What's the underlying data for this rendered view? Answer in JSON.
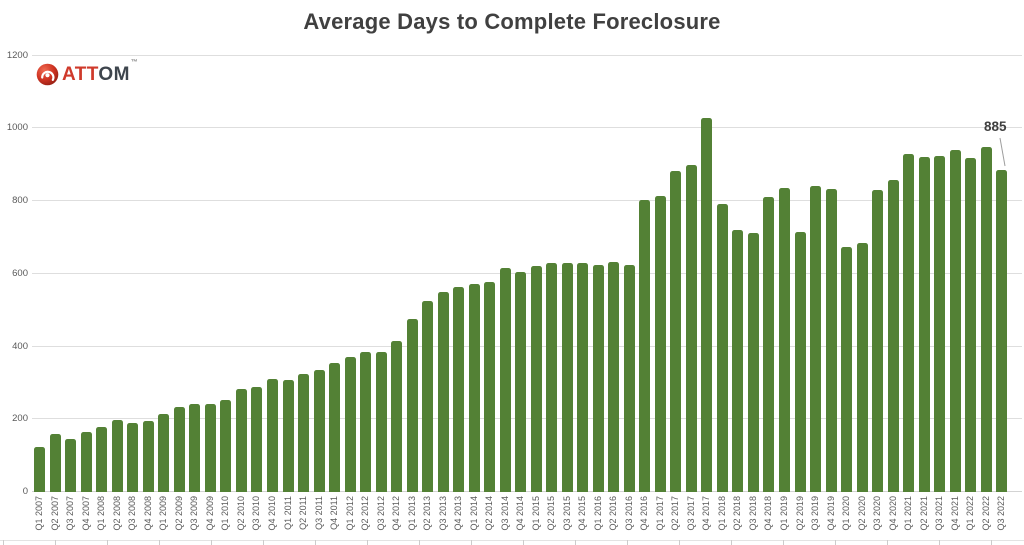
{
  "logo": {
    "text_red": "ATT",
    "text_dark": "OM",
    "trademark": "™",
    "icon_color": "#c6281c"
  },
  "chart_data": {
    "type": "bar",
    "title": "Average Days to Complete Foreclosure",
    "xlabel": "",
    "ylabel": "",
    "ylim": [
      0,
      1200
    ],
    "yticks": [
      0,
      200,
      400,
      600,
      800,
      1000,
      1200
    ],
    "grid": "horizontal",
    "legend": "none",
    "bar_color": "#538135",
    "axis_text_color": "#595959",
    "title_color": "#404040",
    "categories": [
      "Q1 2007",
      "Q2 2007",
      "Q3 2007",
      "Q4 2007",
      "Q1 2008",
      "Q2 2008",
      "Q3 2008",
      "Q4 2008",
      "Q1 2009",
      "Q2 2009",
      "Q3 2009",
      "Q4 2009",
      "Q1 2010",
      "Q2 2010",
      "Q3 2010",
      "Q4 2010",
      "Q1 2011",
      "Q2 2011",
      "Q3 2011",
      "Q4 2011",
      "Q1 2012",
      "Q2 2012",
      "Q3 2012",
      "Q4 2012",
      "Q1 2013",
      "Q2 2013",
      "Q3 2013",
      "Q4 2013",
      "Q1 2014",
      "Q2 2014",
      "Q3 2014",
      "Q4 2014",
      "Q1 2015",
      "Q2 2015",
      "Q3 2015",
      "Q4 2015",
      "Q1 2016",
      "Q2 2016",
      "Q3 2016",
      "Q4 2016",
      "Q1 2017",
      "Q2 2017",
      "Q3 2017",
      "Q4 2017",
      "Q1 2018",
      "Q2 2018",
      "Q3 2018",
      "Q4 2018",
      "Q1 2019",
      "Q2 2019",
      "Q3 2019",
      "Q4 2019",
      "Q1 2020",
      "Q2 2020",
      "Q3 2020",
      "Q4 2020",
      "Q1 2021",
      "Q2 2021",
      "Q3 2021",
      "Q4 2021",
      "Q1 2022",
      "Q2 2022",
      "Q3 2022"
    ],
    "values": [
      125,
      160,
      147,
      164,
      178,
      197,
      190,
      196,
      215,
      235,
      243,
      243,
      253,
      284,
      289,
      312,
      307,
      325,
      336,
      354,
      370,
      384,
      386,
      414,
      477,
      526,
      551,
      564,
      572,
      577,
      615,
      604,
      620,
      629,
      630,
      629,
      625,
      631,
      625,
      803,
      814,
      883,
      899,
      1027,
      791,
      720,
      713,
      811,
      835,
      716,
      841,
      834,
      673,
      685,
      830,
      857,
      930,
      922,
      924,
      941,
      917,
      948,
      885
    ],
    "annotation": {
      "text": "885",
      "category": "Q3 2022"
    }
  }
}
